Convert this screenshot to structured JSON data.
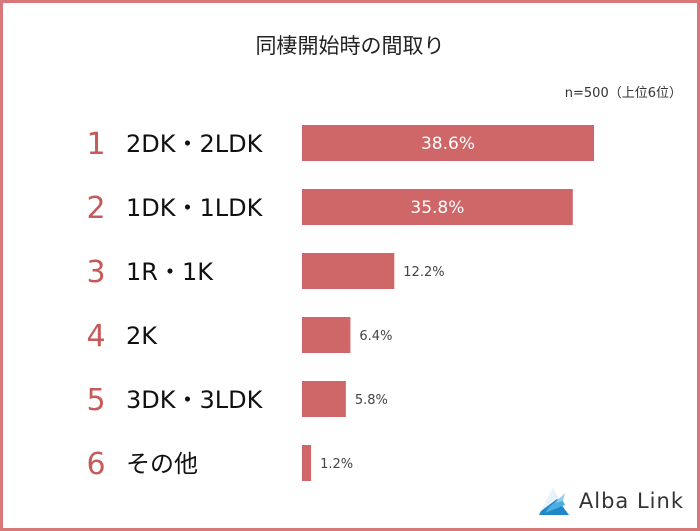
{
  "title": "同棲開始時の間取り",
  "note": "n=500（上位6位）",
  "brand": "Alba Link",
  "colors": {
    "bar": "#cf6768",
    "rank": "#c65a5a",
    "border": "#d97878"
  },
  "chart_data": {
    "type": "bar",
    "orientation": "horizontal",
    "title": "同棲開始時の間取り",
    "ranks": [
      "1",
      "2",
      "3",
      "4",
      "5",
      "6"
    ],
    "categories": [
      "2DK・2LDK",
      "1DK・1LDK",
      "1R・1K",
      "2K",
      "3DK・3LDK",
      "その他"
    ],
    "values": [
      38.6,
      35.8,
      12.2,
      6.4,
      5.8,
      1.2
    ],
    "labels": [
      "38.6%",
      "35.8%",
      "12.2%",
      "6.4%",
      "5.8%",
      "1.2%"
    ],
    "unit": "%",
    "xlim": [
      0,
      38.6
    ],
    "xlabel": "",
    "ylabel": ""
  }
}
